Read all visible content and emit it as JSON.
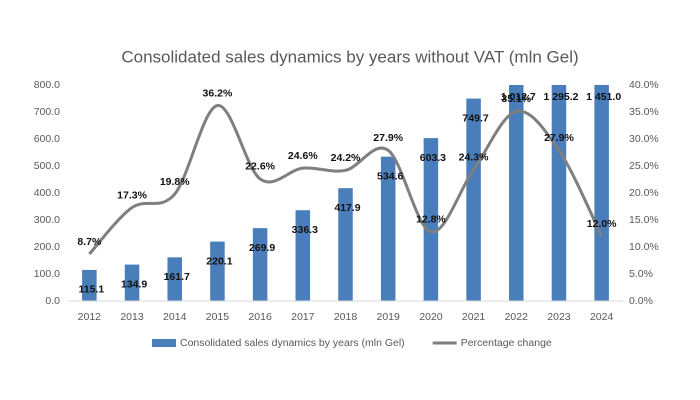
{
  "chart_data": {
    "type": "bar-line",
    "title": "Consolidated sales dynamics by years without VAT (mln Gel)",
    "categories": [
      "2012",
      "2013",
      "2014",
      "2015",
      "2016",
      "2017",
      "2018",
      "2019",
      "2020",
      "2021",
      "2022",
      "2023",
      "2024"
    ],
    "series": [
      {
        "name": "Consolidated sales dynamics by years (mln Gel)",
        "type": "bar",
        "color": "#4a7ebb",
        "values": [
          115.1,
          134.9,
          161.7,
          220.1,
          269.9,
          336.3,
          417.9,
          534.6,
          603.3,
          749.7,
          1012.7,
          1295.2,
          1451.0
        ],
        "value_labels": [
          "115.1",
          "134.9",
          "161.7",
          "220.1",
          "269.9",
          "336.3",
          "417.9",
          "534.6",
          "603.3",
          "749.7",
          "1 012.7",
          "1 295.2",
          "1 451.0"
        ]
      },
      {
        "name": "Percentage change",
        "type": "line",
        "axis": "y2",
        "color": "#7f7f7f",
        "smooth": true,
        "values": [
          8.7,
          17.3,
          19.8,
          36.2,
          22.6,
          24.6,
          24.2,
          27.9,
          12.8,
          24.3,
          35.1,
          27.9,
          12.0
        ],
        "value_labels": [
          "8.7%",
          "17.3%",
          "19.8%",
          "36.2%",
          "22.6%",
          "24.6%",
          "24.2%",
          "27.9%",
          "12.8%",
          "24.3%",
          "35.1%",
          "27.9%",
          "12.0%"
        ]
      }
    ],
    "ylim": [
      0,
      800
    ],
    "yticks": [
      {
        "value": 0,
        "label": "0.0"
      },
      {
        "value": 100,
        "label": "100.0"
      },
      {
        "value": 200,
        "label": "200.0"
      },
      {
        "value": 300,
        "label": "300.0"
      },
      {
        "value": 400,
        "label": "400.0"
      },
      {
        "value": 500,
        "label": "500.0"
      },
      {
        "value": 600,
        "label": "600.0"
      },
      {
        "value": 700,
        "label": "700.0"
      },
      {
        "value": 800,
        "label": "800.0"
      }
    ],
    "y2lim": [
      0,
      40
    ],
    "y2ticks": [
      {
        "value": 0,
        "label": "0.0%"
      },
      {
        "value": 5,
        "label": "5.0%"
      },
      {
        "value": 10,
        "label": "10.0%"
      },
      {
        "value": 15,
        "label": "15.0%"
      },
      {
        "value": 20,
        "label": "20.0%"
      },
      {
        "value": 25,
        "label": "25.0%"
      },
      {
        "value": 30,
        "label": "30.0%"
      },
      {
        "value": 35,
        "label": "35.0%"
      },
      {
        "value": 40,
        "label": "40.0%"
      }
    ],
    "grid": false,
    "legend": "bottom"
  }
}
